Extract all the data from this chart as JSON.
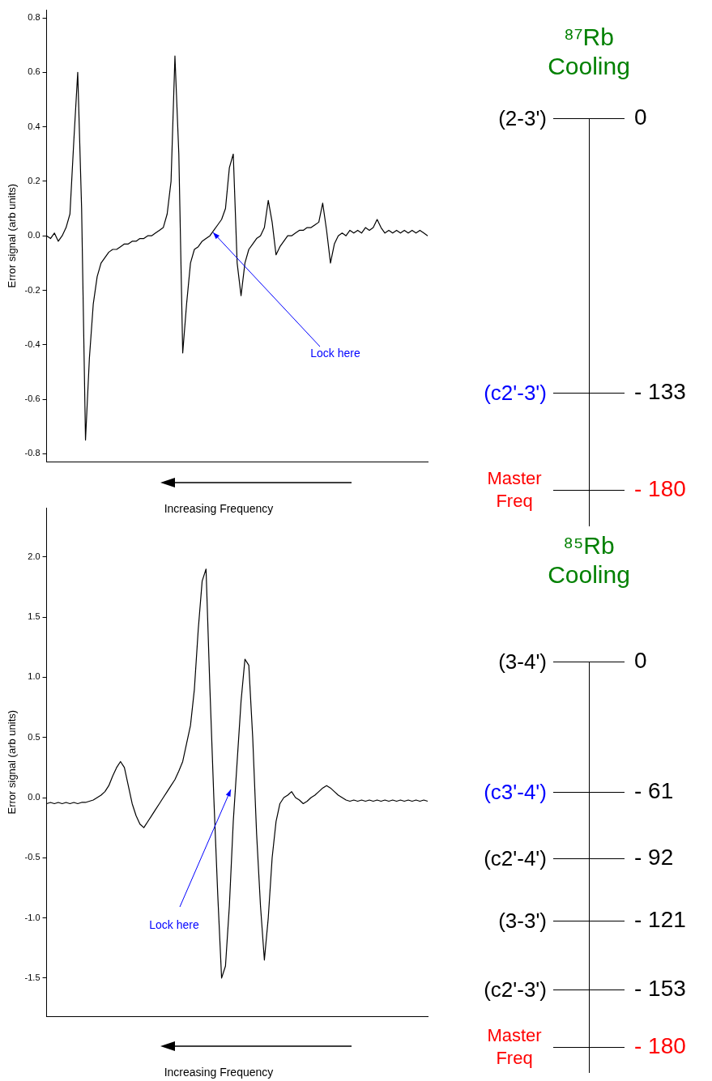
{
  "chart_data": [
    {
      "type": "line",
      "ylabel": "Error signal (arb units)",
      "xlabel": "Increasing Frequency",
      "tick_labels": "y",
      "annotations": [
        "Lock here"
      ],
      "categories": [
        null,
        null,
        null,
        null,
        null,
        null,
        null,
        null,
        null,
        null,
        null,
        null,
        null,
        null,
        null,
        null,
        null,
        null,
        null,
        null,
        null,
        null,
        null,
        null,
        null,
        null,
        null,
        null,
        null,
        null,
        null,
        null,
        null,
        null,
        null,
        null,
        null,
        null,
        null,
        null,
        null,
        null,
        null,
        null,
        null,
        null,
        null,
        null,
        null,
        null,
        null,
        null,
        null,
        null,
        null,
        null,
        null,
        null,
        null,
        null,
        null,
        null,
        null,
        null,
        null,
        null,
        null,
        null,
        null,
        null,
        null,
        null,
        null,
        null,
        null,
        null,
        null,
        null,
        null,
        null,
        null,
        null,
        null,
        null,
        null,
        null,
        null,
        null,
        null,
        null,
        null,
        null,
        null,
        null,
        null,
        null,
        null,
        null,
        null
      ],
      "series": [
        {
          "color": "#000000",
          "values": [
            0.0,
            -0.01,
            0.01,
            -0.02,
            0.0,
            0.03,
            0.08,
            0.35,
            0.6,
            0.1,
            -0.75,
            -0.45,
            -0.25,
            -0.15,
            -0.1,
            -0.08,
            -0.06,
            -0.05,
            -0.05,
            -0.04,
            -0.03,
            -0.03,
            -0.02,
            -0.02,
            -0.01,
            -0.01,
            0.0,
            0.0,
            0.01,
            0.02,
            0.03,
            0.08,
            0.2,
            0.66,
            0.3,
            -0.43,
            -0.25,
            -0.1,
            -0.05,
            -0.04,
            -0.02,
            -0.01,
            0.0,
            0.02,
            0.04,
            0.06,
            0.1,
            0.25,
            0.3,
            -0.1,
            -0.22,
            -0.1,
            -0.05,
            -0.03,
            -0.01,
            0.0,
            0.03,
            0.13,
            0.05,
            -0.07,
            -0.04,
            -0.02,
            0.0,
            0.0,
            0.01,
            0.02,
            0.02,
            0.03,
            0.03,
            0.04,
            0.05,
            0.12,
            0.02,
            -0.1,
            -0.03,
            0.0,
            0.01,
            0.0,
            0.02,
            0.01,
            0.02,
            0.01,
            0.03,
            0.02,
            0.03,
            0.06,
            0.03,
            0.01,
            0.02,
            0.01,
            0.02,
            0.01,
            0.02,
            0.01,
            0.02,
            0.01,
            0.02,
            0.01,
            0.0
          ]
        }
      ],
      "ylim": [
        -0.83,
        0.83
      ],
      "yticks": [
        {
          "value": -0.8,
          "label": "-0.8"
        },
        {
          "value": -0.6,
          "label": "-0.6"
        },
        {
          "value": -0.4,
          "label": "-0.4"
        },
        {
          "value": -0.2,
          "label": "-0.2"
        },
        {
          "value": 0,
          "label": "0.0"
        },
        {
          "value": 0.2,
          "label": "0.2"
        },
        {
          "value": 0.4,
          "label": "0.4"
        },
        {
          "value": 0.6,
          "label": "0.6"
        },
        {
          "value": 0.8,
          "label": "0.8"
        }
      ]
    },
    {
      "type": "other",
      "title": "⁸⁷Rb Cooling",
      "categories": [
        "(2-3')",
        "(c2'-3')",
        "Master Freq"
      ],
      "values": [
        0,
        -133,
        -180
      ],
      "value_labels": [
        "0",
        "- 133",
        "- 180"
      ],
      "colors": [
        "#000000",
        "#0000ff",
        "#ff0000"
      ]
    },
    {
      "type": "line",
      "ylabel": "Error signal (arb units)",
      "xlabel": "Increasing Frequency",
      "tick_labels": "y",
      "annotations": [
        "Lock here"
      ],
      "categories": [
        null,
        null,
        null,
        null,
        null,
        null,
        null,
        null,
        null,
        null,
        null,
        null,
        null,
        null,
        null,
        null,
        null,
        null,
        null,
        null,
        null,
        null,
        null,
        null,
        null,
        null,
        null,
        null,
        null,
        null,
        null,
        null,
        null,
        null,
        null,
        null,
        null,
        null,
        null,
        null,
        null,
        null,
        null,
        null,
        null,
        null,
        null,
        null,
        null,
        null,
        null,
        null,
        null,
        null,
        null,
        null,
        null,
        null,
        null,
        null,
        null,
        null,
        null,
        null,
        null,
        null,
        null,
        null,
        null,
        null,
        null,
        null,
        null,
        null,
        null,
        null,
        null,
        null,
        null,
        null,
        null,
        null,
        null,
        null,
        null,
        null,
        null,
        null,
        null,
        null,
        null,
        null,
        null,
        null,
        null,
        null,
        null,
        null,
        null
      ],
      "series": [
        {
          "color": "#000000",
          "values": [
            -0.05,
            -0.04,
            -0.05,
            -0.04,
            -0.05,
            -0.04,
            -0.05,
            -0.04,
            -0.05,
            -0.04,
            -0.04,
            -0.03,
            -0.02,
            0.0,
            0.02,
            0.05,
            0.1,
            0.18,
            0.25,
            0.3,
            0.25,
            0.1,
            -0.05,
            -0.15,
            -0.22,
            -0.25,
            -0.2,
            -0.15,
            -0.1,
            -0.05,
            0.0,
            0.05,
            0.1,
            0.15,
            0.22,
            0.3,
            0.45,
            0.6,
            0.9,
            1.4,
            1.8,
            1.9,
            0.9,
            0.0,
            -0.8,
            -1.5,
            -1.4,
            -0.9,
            -0.2,
            0.3,
            0.8,
            1.15,
            1.1,
            0.5,
            -0.3,
            -0.9,
            -1.35,
            -1.0,
            -0.5,
            -0.2,
            -0.05,
            0.0,
            0.02,
            0.05,
            0.0,
            -0.02,
            -0.05,
            -0.03,
            0.0,
            0.02,
            0.05,
            0.08,
            0.1,
            0.08,
            0.05,
            0.02,
            0.0,
            -0.02,
            -0.03,
            -0.02,
            -0.03,
            -0.02,
            -0.03,
            -0.02,
            -0.03,
            -0.02,
            -0.03,
            -0.02,
            -0.03,
            -0.02,
            -0.03,
            -0.02,
            -0.03,
            -0.02,
            -0.03,
            -0.02,
            -0.03,
            -0.02,
            -0.03
          ]
        }
      ],
      "ylim": [
        -1.82,
        2.41
      ],
      "yticks": [
        {
          "value": -1.5,
          "label": "-1.5"
        },
        {
          "value": -1,
          "label": "-1.0"
        },
        {
          "value": -0.5,
          "label": "-0.5"
        },
        {
          "value": 0,
          "label": "0.0"
        },
        {
          "value": 0.5,
          "label": "0.5"
        },
        {
          "value": 1,
          "label": "1.0"
        },
        {
          "value": 1.5,
          "label": "1.5"
        },
        {
          "value": 2,
          "label": "2.0"
        }
      ]
    },
    {
      "type": "other",
      "title": "⁸⁵Rb Cooling",
      "categories": [
        "(3-4')",
        "(c3'-4')",
        "(c2'-4')",
        "(3-3')",
        "(c2'-3')",
        "Master Freq"
      ],
      "values": [
        0,
        -61,
        -92,
        -121,
        -153,
        -180
      ],
      "value_labels": [
        "0",
        "- 61",
        "- 92",
        "- 121",
        "- 153",
        "- 180"
      ],
      "colors": [
        "#000000",
        "#0000ff",
        "#000000",
        "#000000",
        "#000000",
        "#ff0000"
      ]
    }
  ]
}
